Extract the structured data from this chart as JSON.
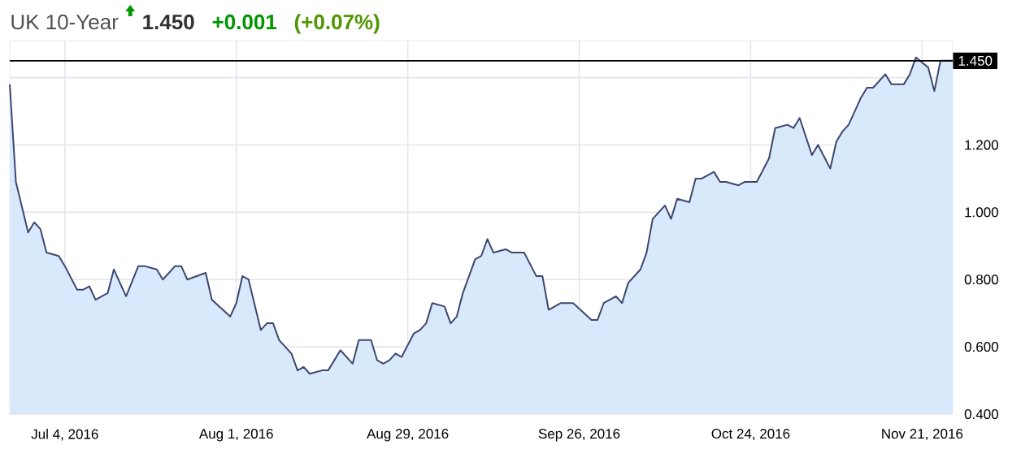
{
  "chart_data": {
    "type": "area",
    "title": "UK 10-Year",
    "annotations": [
      "1.450",
      "+0.001",
      "(+0.07%)"
    ],
    "x": [
      "2016-06-25",
      "2016-06-26",
      "2016-06-28",
      "2016-06-29",
      "2016-06-30",
      "2016-07-01",
      "2016-07-03",
      "2016-07-04",
      "2016-07-06",
      "2016-07-07",
      "2016-07-08",
      "2016-07-09",
      "2016-07-11",
      "2016-07-12",
      "2016-07-14",
      "2016-07-16",
      "2016-07-17",
      "2016-07-19",
      "2016-07-20",
      "2016-07-22",
      "2016-07-23",
      "2016-07-24",
      "2016-07-27",
      "2016-07-28",
      "2016-07-31",
      "2016-08-01",
      "2016-08-02",
      "2016-08-03",
      "2016-08-05",
      "2016-08-06",
      "2016-08-07",
      "2016-08-08",
      "2016-08-10",
      "2016-08-11",
      "2016-08-12",
      "2016-08-13",
      "2016-08-15",
      "2016-08-16",
      "2016-08-18",
      "2016-08-20",
      "2016-08-21",
      "2016-08-23",
      "2016-08-24",
      "2016-08-25",
      "2016-08-26",
      "2016-08-27",
      "2016-08-28",
      "2016-08-30",
      "2016-08-31",
      "2016-09-01",
      "2016-09-02",
      "2016-09-04",
      "2016-09-05",
      "2016-09-06",
      "2016-09-07",
      "2016-09-09",
      "2016-09-10",
      "2016-09-11",
      "2016-09-12",
      "2016-09-14",
      "2016-09-15",
      "2016-09-17",
      "2016-09-19",
      "2016-09-20",
      "2016-09-21",
      "2016-09-23",
      "2016-09-25",
      "2016-09-28",
      "2016-09-29",
      "2016-09-30",
      "2016-10-02",
      "2016-10-03",
      "2016-10-04",
      "2016-10-06",
      "2016-10-07",
      "2016-10-08",
      "2016-10-10",
      "2016-10-11",
      "2016-10-12",
      "2016-10-14",
      "2016-10-15",
      "2016-10-16",
      "2016-10-18",
      "2016-10-19",
      "2016-10-20",
      "2016-10-22",
      "2016-10-23",
      "2016-10-25",
      "2016-10-27",
      "2016-10-28",
      "2016-10-30",
      "2016-10-31",
      "2016-11-01",
      "2016-11-03",
      "2016-11-04",
      "2016-11-06",
      "2016-11-07",
      "2016-11-08",
      "2016-11-09",
      "2016-11-11",
      "2016-11-12",
      "2016-11-13",
      "2016-11-15",
      "2016-11-16",
      "2016-11-18",
      "2016-11-19",
      "2016-11-20",
      "2016-11-22",
      "2016-11-23",
      "2016-11-24",
      "2016-11-26"
    ],
    "values": [
      1.38,
      1.09,
      0.94,
      0.97,
      0.95,
      0.88,
      0.87,
      0.84,
      0.77,
      0.77,
      0.78,
      0.74,
      0.76,
      0.83,
      0.75,
      0.84,
      0.84,
      0.83,
      0.8,
      0.84,
      0.84,
      0.8,
      0.82,
      0.74,
      0.69,
      0.73,
      0.81,
      0.8,
      0.65,
      0.67,
      0.67,
      0.62,
      0.58,
      0.53,
      0.54,
      0.52,
      0.53,
      0.53,
      0.59,
      0.55,
      0.62,
      0.62,
      0.56,
      0.55,
      0.56,
      0.58,
      0.57,
      0.64,
      0.65,
      0.67,
      0.73,
      0.72,
      0.67,
      0.69,
      0.76,
      0.86,
      0.87,
      0.92,
      0.88,
      0.89,
      0.88,
      0.88,
      0.81,
      0.81,
      0.71,
      0.73,
      0.73,
      0.68,
      0.68,
      0.73,
      0.75,
      0.73,
      0.79,
      0.83,
      0.88,
      0.98,
      1.02,
      0.98,
      1.04,
      1.03,
      1.1,
      1.1,
      1.12,
      1.09,
      1.09,
      1.08,
      1.09,
      1.09,
      1.16,
      1.25,
      1.26,
      1.25,
      1.28,
      1.17,
      1.2,
      1.13,
      1.21,
      1.24,
      1.26,
      1.34,
      1.37,
      1.37,
      1.41,
      1.38,
      1.38,
      1.41,
      1.46,
      1.43,
      1.36,
      1.45,
      1.45
    ],
    "color": "#3d4770",
    "xlim": [
      "2016-06-25",
      "2016-11-26"
    ],
    "ylim": [
      0.4,
      1.51
    ],
    "xticks": [
      {
        "value": "2016-07-04",
        "label": "Jul 4, 2016"
      },
      {
        "value": "2016-08-01",
        "label": "Aug 1, 2016"
      },
      {
        "value": "2016-08-29",
        "label": "Aug 29, 2016"
      },
      {
        "value": "2016-09-26",
        "label": "Sep 26, 2016"
      },
      {
        "value": "2016-10-24",
        "label": "Oct 24, 2016"
      },
      {
        "value": "2016-11-21",
        "label": "Nov 21, 2016"
      }
    ],
    "yticks": [
      {
        "value": 0.4,
        "label": "0.400"
      },
      {
        "value": 0.6,
        "label": "0.600"
      },
      {
        "value": 0.8,
        "label": "0.800"
      },
      {
        "value": 1.0,
        "label": "1.000"
      },
      {
        "value": 1.2,
        "label": "1.200"
      },
      {
        "value": 1.4,
        "label": null
      }
    ],
    "ref_lines": [
      {
        "axis": "y",
        "value": 1.45,
        "label": "1.450",
        "color": "#000000"
      }
    ],
    "grid": true
  }
}
